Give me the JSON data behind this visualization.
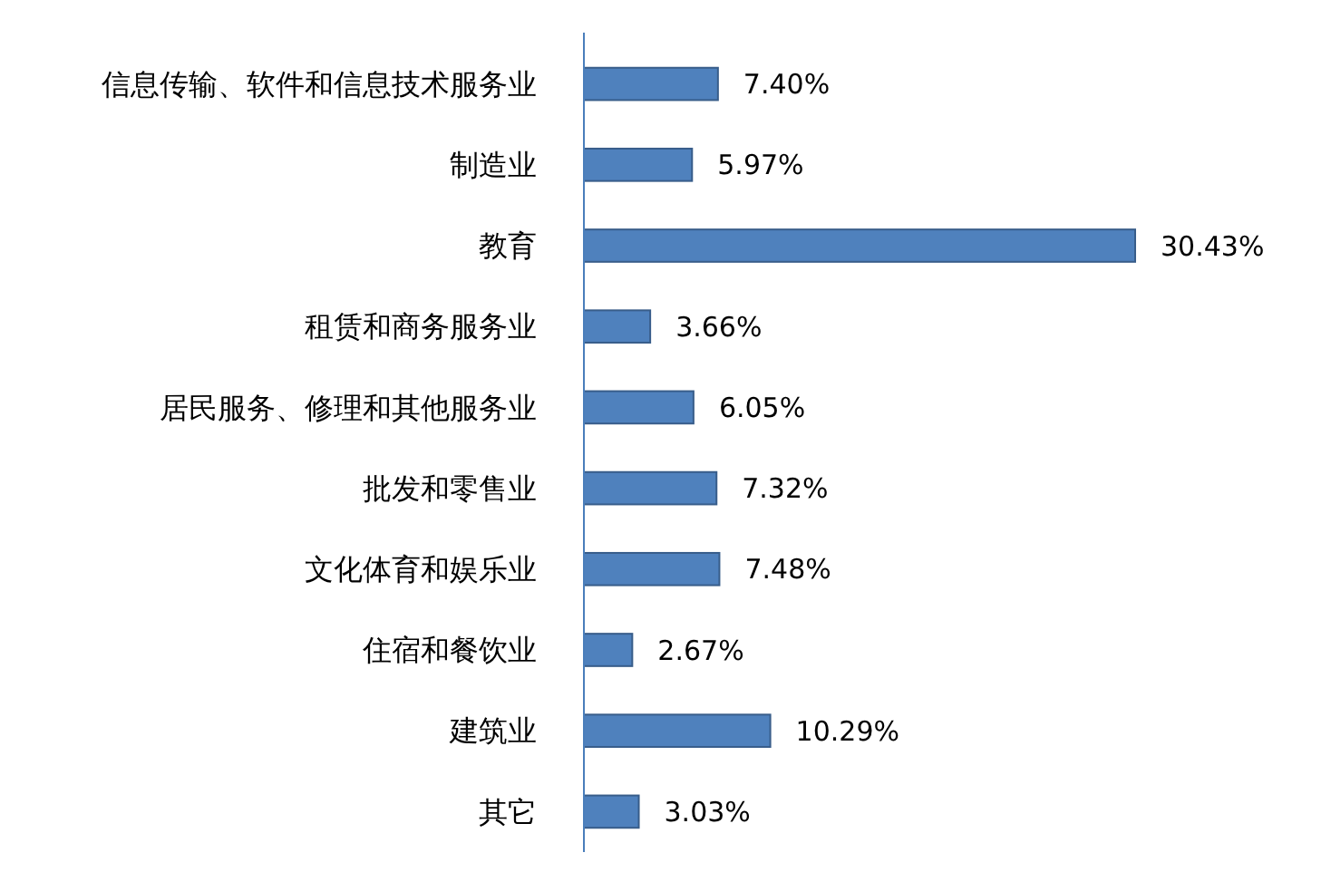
{
  "chart_data": {
    "type": "bar",
    "orientation": "horizontal",
    "categories": [
      "信息传输、软件和信息技术服务业",
      "制造业",
      "教育",
      "租赁和商务服务业",
      "居民服务、修理和其他服务业",
      "批发和零售业",
      "文化体育和娱乐业",
      "住宿和餐饮业",
      "建筑业",
      "其它"
    ],
    "values": [
      7.4,
      5.97,
      30.43,
      3.66,
      6.05,
      7.32,
      7.48,
      2.67,
      10.29,
      3.03
    ],
    "value_labels": [
      "7.40%",
      "5.97%",
      "30.43%",
      "3.66%",
      "6.05%",
      "7.32%",
      "7.48%",
      "2.67%",
      "10.29%",
      "3.03%"
    ],
    "color": "#4f81bd"
  }
}
